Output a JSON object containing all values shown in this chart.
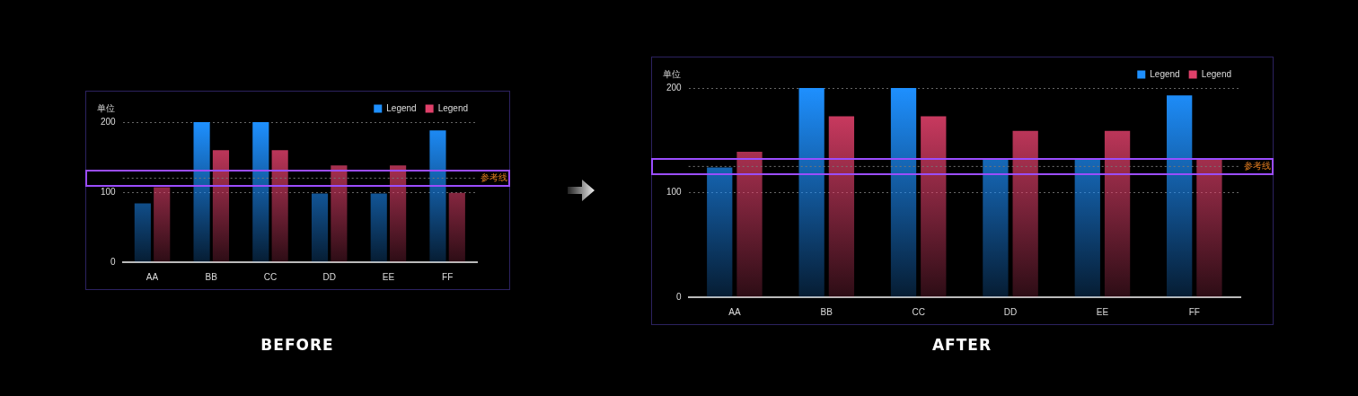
{
  "chart_data": [
    {
      "type": "bar",
      "title": "BEFORE",
      "ylabel": "单位",
      "categories": [
        "AA",
        "BB",
        "CC",
        "DD",
        "EE",
        "FF"
      ],
      "series": [
        {
          "name": "Legend",
          "color": "#1e90ff",
          "values": [
            84,
            200,
            200,
            98,
            98,
            188
          ]
        },
        {
          "name": "Legend",
          "color": "#e0406a",
          "values": [
            107,
            160,
            160,
            138,
            138,
            99
          ]
        }
      ],
      "ylim": [
        0,
        200
      ],
      "yticks": [
        0,
        100,
        200
      ],
      "grid": "y",
      "legend": "top right",
      "ref_lines": [
        {
          "axis": "y",
          "value": 120,
          "label": "参考线",
          "line_style": "dotted"
        }
      ]
    },
    {
      "type": "bar",
      "title": "AFTER",
      "ylabel": "单位",
      "categories": [
        "AA",
        "BB",
        "CC",
        "DD",
        "EE",
        "FF"
      ],
      "series": [
        {
          "name": "Legend",
          "color": "#1e90ff",
          "values": [
            124,
            200,
            200,
            132,
            132,
            193
          ]
        },
        {
          "name": "Legend",
          "color": "#e0406a",
          "values": [
            139,
            173,
            173,
            159,
            159,
            132
          ]
        }
      ],
      "ylim": [
        0,
        200
      ],
      "yticks": [
        0,
        100,
        200
      ],
      "grid": "y",
      "legend": "top right",
      "ref_lines": [
        {
          "axis": "y",
          "value": 125,
          "label": "参考线",
          "line_style": "dotted"
        }
      ]
    }
  ]
}
